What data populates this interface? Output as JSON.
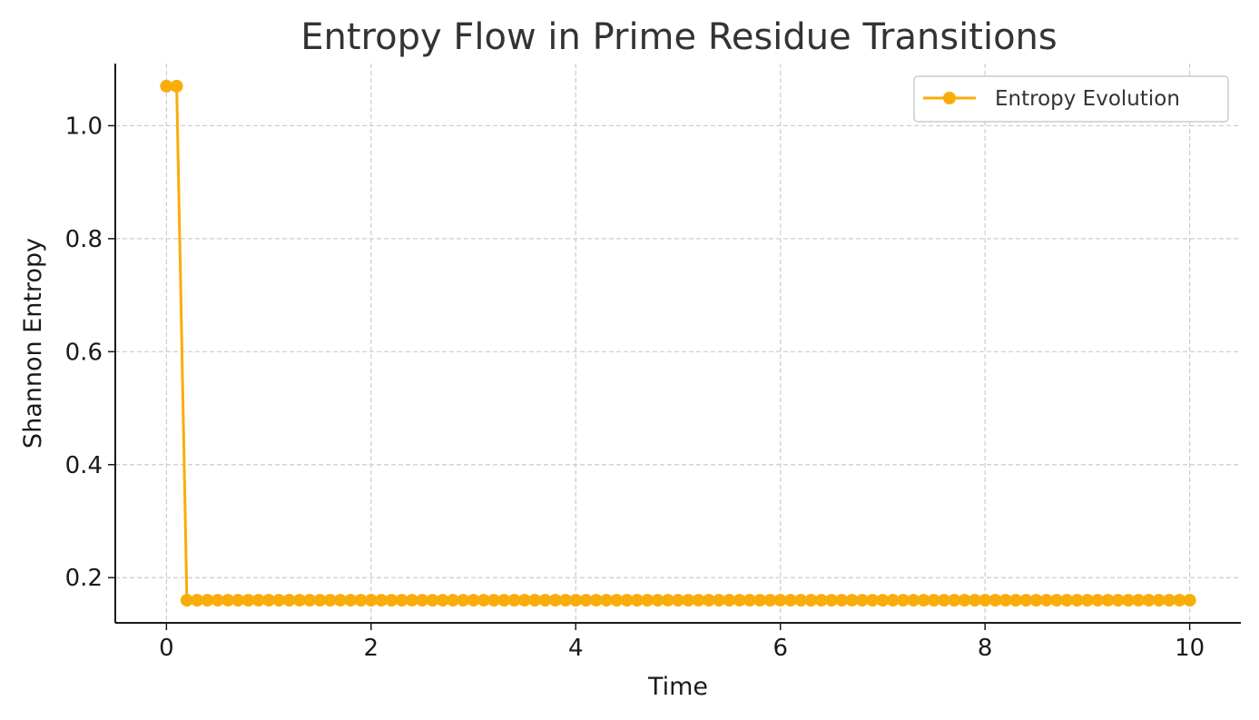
{
  "chart_data": {
    "type": "line",
    "title": "Entropy Flow in Prime Residue Transitions",
    "xlabel": "Time",
    "ylabel": "Shannon Entropy",
    "xlim": [
      -0.5,
      10.5
    ],
    "ylim": [
      0.12,
      1.11
    ],
    "xticks": [
      0,
      2,
      4,
      6,
      8,
      10
    ],
    "xtick_labels": [
      "0",
      "2",
      "4",
      "6",
      "8",
      "10"
    ],
    "yticks": [
      0.2,
      0.4,
      0.6,
      0.8,
      1.0
    ],
    "ytick_labels": [
      "0.2",
      "0.4",
      "0.6",
      "0.8",
      "1.0"
    ],
    "grid": true,
    "legend_position": "top-right",
    "series": [
      {
        "name": "Entropy Evolution",
        "color": "#F9AD0A",
        "marker": "circle",
        "x": [
          0.0,
          0.1,
          0.2,
          0.3,
          0.4,
          0.5,
          0.6,
          0.7,
          0.8,
          0.9,
          1.0,
          1.1,
          1.2,
          1.3,
          1.4,
          1.5,
          1.6,
          1.7,
          1.8,
          1.9,
          2.0,
          2.1,
          2.2,
          2.3,
          2.4,
          2.5,
          2.6,
          2.7,
          2.8,
          2.9,
          3.0,
          3.1,
          3.2,
          3.3,
          3.4,
          3.5,
          3.6,
          3.7,
          3.8,
          3.9,
          4.0,
          4.1,
          4.2,
          4.3,
          4.4,
          4.5,
          4.6,
          4.7,
          4.8,
          4.9,
          5.0,
          5.1,
          5.2,
          5.3,
          5.4,
          5.5,
          5.6,
          5.7,
          5.8,
          5.9,
          6.0,
          6.1,
          6.2,
          6.3,
          6.4,
          6.5,
          6.6,
          6.7,
          6.8,
          6.9,
          7.0,
          7.1,
          7.2,
          7.3,
          7.4,
          7.5,
          7.6,
          7.7,
          7.8,
          7.9,
          8.0,
          8.1,
          8.2,
          8.3,
          8.4,
          8.5,
          8.6,
          8.7,
          8.8,
          8.9,
          9.0,
          9.1,
          9.2,
          9.3,
          9.4,
          9.5,
          9.6,
          9.7,
          9.8,
          9.9,
          10.0
        ],
        "y": [
          1.07,
          1.07,
          0.16,
          0.16,
          0.16,
          0.16,
          0.16,
          0.16,
          0.16,
          0.16,
          0.16,
          0.16,
          0.16,
          0.16,
          0.16,
          0.16,
          0.16,
          0.16,
          0.16,
          0.16,
          0.16,
          0.16,
          0.16,
          0.16,
          0.16,
          0.16,
          0.16,
          0.16,
          0.16,
          0.16,
          0.16,
          0.16,
          0.16,
          0.16,
          0.16,
          0.16,
          0.16,
          0.16,
          0.16,
          0.16,
          0.16,
          0.16,
          0.16,
          0.16,
          0.16,
          0.16,
          0.16,
          0.16,
          0.16,
          0.16,
          0.16,
          0.16,
          0.16,
          0.16,
          0.16,
          0.16,
          0.16,
          0.16,
          0.16,
          0.16,
          0.16,
          0.16,
          0.16,
          0.16,
          0.16,
          0.16,
          0.16,
          0.16,
          0.16,
          0.16,
          0.16,
          0.16,
          0.16,
          0.16,
          0.16,
          0.16,
          0.16,
          0.16,
          0.16,
          0.16,
          0.16,
          0.16,
          0.16,
          0.16,
          0.16,
          0.16,
          0.16,
          0.16,
          0.16,
          0.16,
          0.16,
          0.16,
          0.16,
          0.16,
          0.16,
          0.16,
          0.16,
          0.16,
          0.16,
          0.16,
          0.16
        ]
      }
    ]
  }
}
